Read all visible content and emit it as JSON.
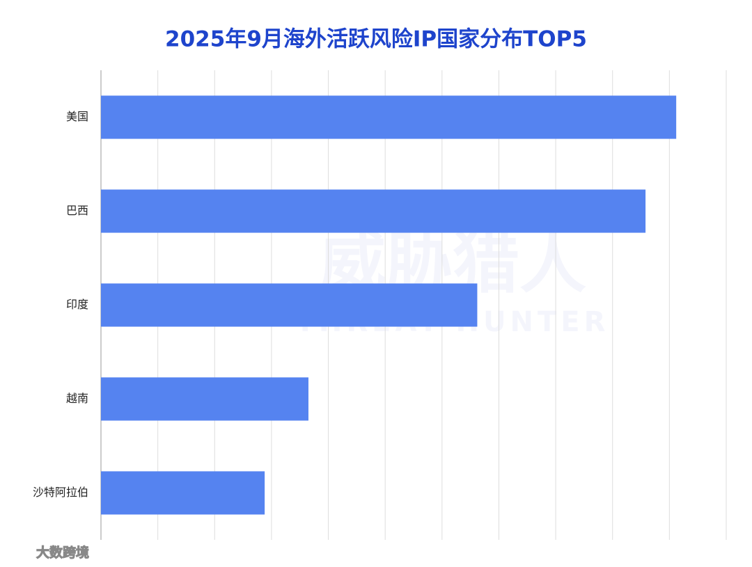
{
  "chart_data": {
    "type": "hbar",
    "title": "2025年9月海外活跃风险IP国家分布TOP5",
    "categories": [
      "美国",
      "巴西",
      "印度",
      "越南",
      "沙特阿拉伯"
    ],
    "values": [
      10.12,
      9.58,
      6.62,
      3.65,
      2.88
    ],
    "color": "#5583f0",
    "xlim": [
      0,
      11
    ],
    "xticks": [
      0,
      1,
      2,
      3,
      4,
      5,
      6,
      7,
      8,
      9,
      10,
      11
    ],
    "grid": true,
    "watermark": "威胁猎人",
    "watermark_sub": "THREAT HUNTER",
    "source": "大数跨境"
  }
}
